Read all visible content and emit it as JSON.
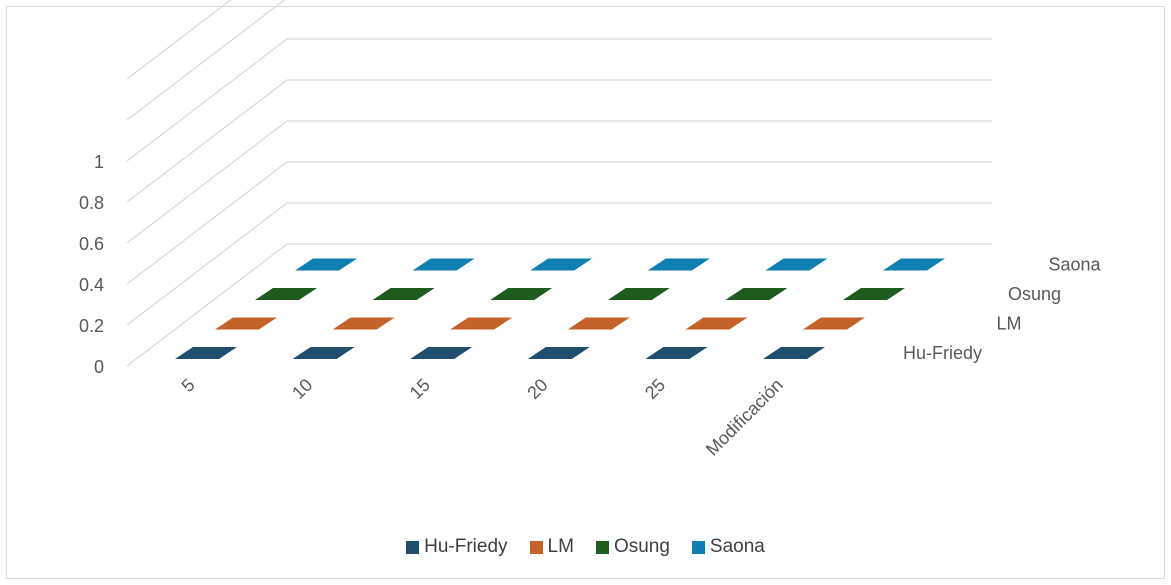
{
  "chart_data": {
    "type": "bar3d",
    "title": "",
    "categories": [
      "5",
      "10",
      "15",
      "20",
      "25",
      "Modificación"
    ],
    "z_tick_labels": [
      "0",
      "0.2",
      "0.4",
      "0.6",
      "0.8",
      "1"
    ],
    "zlim": [
      0,
      1
    ],
    "series": [
      {
        "name": "Hu-Friedy",
        "color": "#1f4e6e",
        "values": [
          0,
          0,
          0,
          0,
          0,
          0
        ]
      },
      {
        "name": "LM",
        "color": "#c5622a",
        "values": [
          0,
          0,
          0,
          0,
          0,
          0
        ]
      },
      {
        "name": "Osung",
        "color": "#1e5c1e",
        "values": [
          0,
          0,
          0,
          0,
          0,
          0
        ]
      },
      {
        "name": "Saona",
        "color": "#0e7fb0",
        "values": [
          0,
          0,
          0,
          0,
          0,
          0
        ]
      }
    ],
    "grid": true,
    "legend_position": "bottom"
  }
}
